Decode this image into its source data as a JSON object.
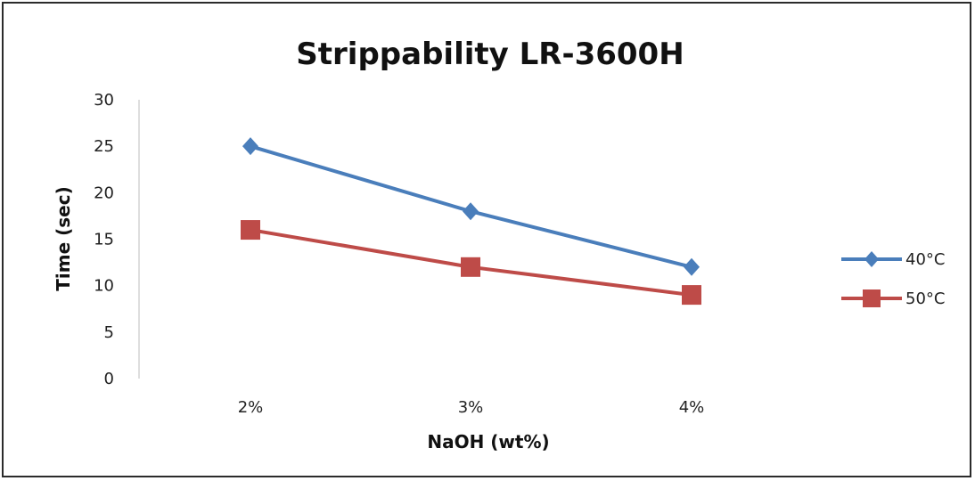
{
  "chart_data": {
    "type": "line",
    "title": "Strippability LR-3600H",
    "xlabel": "NaOH (wt%)",
    "ylabel": "Time (sec)",
    "categories": [
      "2%",
      "3%",
      "4%"
    ],
    "ylim": [
      0,
      30
    ],
    "yticks": [
      0,
      5,
      10,
      15,
      20,
      25,
      30
    ],
    "grid": false,
    "legend_position": "right",
    "series": [
      {
        "name": "40°C",
        "values": [
          25,
          18,
          12
        ],
        "color": "#4a7ebb",
        "marker": "diamond"
      },
      {
        "name": "50°C",
        "values": [
          16,
          12,
          9
        ],
        "color": "#be4b48",
        "marker": "square"
      }
    ]
  }
}
